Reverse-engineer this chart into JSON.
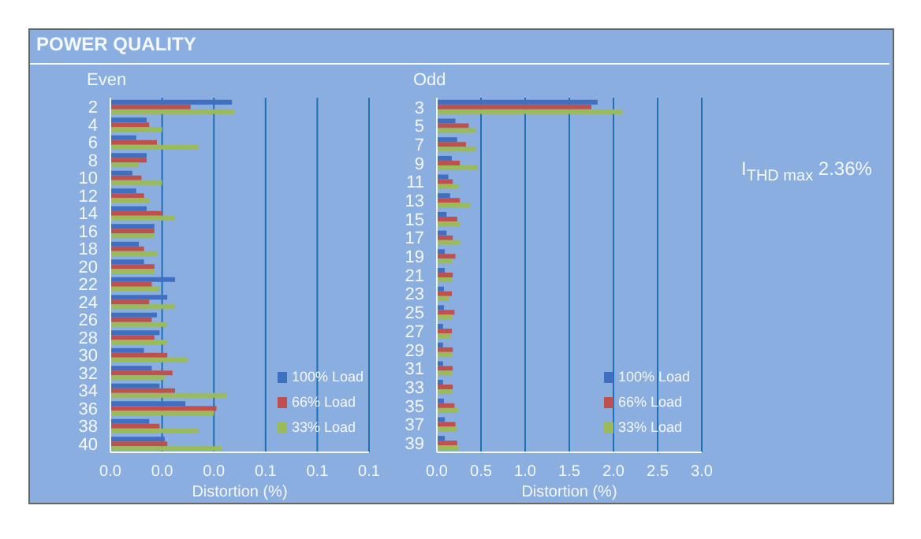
{
  "chart_data": [
    {
      "type": "bar",
      "orientation": "horizontal",
      "title": "POWER QUALITY",
      "subtitle": "Even",
      "xlabel": "Distortion (%)",
      "categories": [
        "2",
        "4",
        "6",
        "8",
        "10",
        "12",
        "14",
        "16",
        "18",
        "20",
        "22",
        "24",
        "26",
        "28",
        "30",
        "32",
        "34",
        "36",
        "38",
        "40"
      ],
      "series": [
        {
          "name": "100% Load",
          "color": "#3f6fc0",
          "values": [
            0.047,
            0.014,
            0.01,
            0.014,
            0.0085,
            0.01,
            0.014,
            0.017,
            0.011,
            0.013,
            0.025,
            0.022,
            0.018,
            0.019,
            0.013,
            0.016,
            0.019,
            0.029,
            0.015,
            0.021
          ]
        },
        {
          "name": "66% Load",
          "color": "#c0504d",
          "values": [
            0.031,
            0.015,
            0.018,
            0.014,
            0.012,
            0.013,
            0.02,
            0.017,
            0.013,
            0.017,
            0.016,
            0.015,
            0.016,
            0.017,
            0.022,
            0.024,
            0.025,
            0.041,
            0.019,
            0.022
          ]
        },
        {
          "name": "33% Load",
          "color": "#9bbb59",
          "values": [
            0.048,
            0.02,
            0.034,
            0.011,
            0.02,
            0.015,
            0.025,
            0.017,
            0.018,
            0.017,
            0.019,
            0.025,
            0.022,
            0.022,
            0.03,
            0.021,
            0.045,
            0.04,
            0.034,
            0.043
          ]
        }
      ],
      "xlim": [
        0,
        0.1
      ],
      "xticks": [
        {
          "value": 0,
          "label": "0.0"
        },
        {
          "value": 0.02,
          "label": "0.0"
        },
        {
          "value": 0.04,
          "label": "0.0"
        },
        {
          "value": 0.06,
          "label": "0.1"
        },
        {
          "value": 0.08,
          "label": "0.1"
        },
        {
          "value": 0.1,
          "label": "0.1"
        }
      ],
      "grid": "x",
      "legend": "bottom right"
    },
    {
      "type": "bar",
      "orientation": "horizontal",
      "subtitle": "Odd",
      "xlabel": "Distortion (%)",
      "categories": [
        "3",
        "5",
        "7",
        "9",
        "11",
        "13",
        "15",
        "17",
        "19",
        "21",
        "23",
        "25",
        "27",
        "29",
        "31",
        "33",
        "35",
        "37",
        "39"
      ],
      "series": [
        {
          "name": "100% Load",
          "color": "#3f6fc0",
          "values": [
            1.82,
            0.21,
            0.23,
            0.17,
            0.13,
            0.15,
            0.11,
            0.11,
            0.09,
            0.09,
            0.08,
            0.08,
            0.07,
            0.07,
            0.07,
            0.07,
            0.08,
            0.09,
            0.09
          ]
        },
        {
          "name": "66% Load",
          "color": "#c0504d",
          "values": [
            1.75,
            0.36,
            0.33,
            0.26,
            0.18,
            0.26,
            0.23,
            0.18,
            0.21,
            0.18,
            0.17,
            0.2,
            0.17,
            0.18,
            0.18,
            0.18,
            0.2,
            0.21,
            0.23
          ]
        },
        {
          "name": "33% Load",
          "color": "#9bbb59",
          "values": [
            2.1,
            0.44,
            0.44,
            0.46,
            0.24,
            0.38,
            0.26,
            0.26,
            0.17,
            0.17,
            0.14,
            0.17,
            0.15,
            0.17,
            0.17,
            0.17,
            0.24,
            0.23,
            0.24
          ]
        }
      ],
      "xlim": [
        0,
        3
      ],
      "xticks": [
        {
          "value": 0,
          "label": "0.0"
        },
        {
          "value": 0.5,
          "label": "0.5"
        },
        {
          "value": 1,
          "label": "1.0"
        },
        {
          "value": 1.5,
          "label": "1.5"
        },
        {
          "value": 2,
          "label": "2.0"
        },
        {
          "value": 2.5,
          "label": "2.5"
        },
        {
          "value": 3,
          "label": "3.0"
        }
      ],
      "grid": "x",
      "legend": "bottom right",
      "annotations": [
        "I$_{THD max}$ 2.36%"
      ]
    }
  ]
}
